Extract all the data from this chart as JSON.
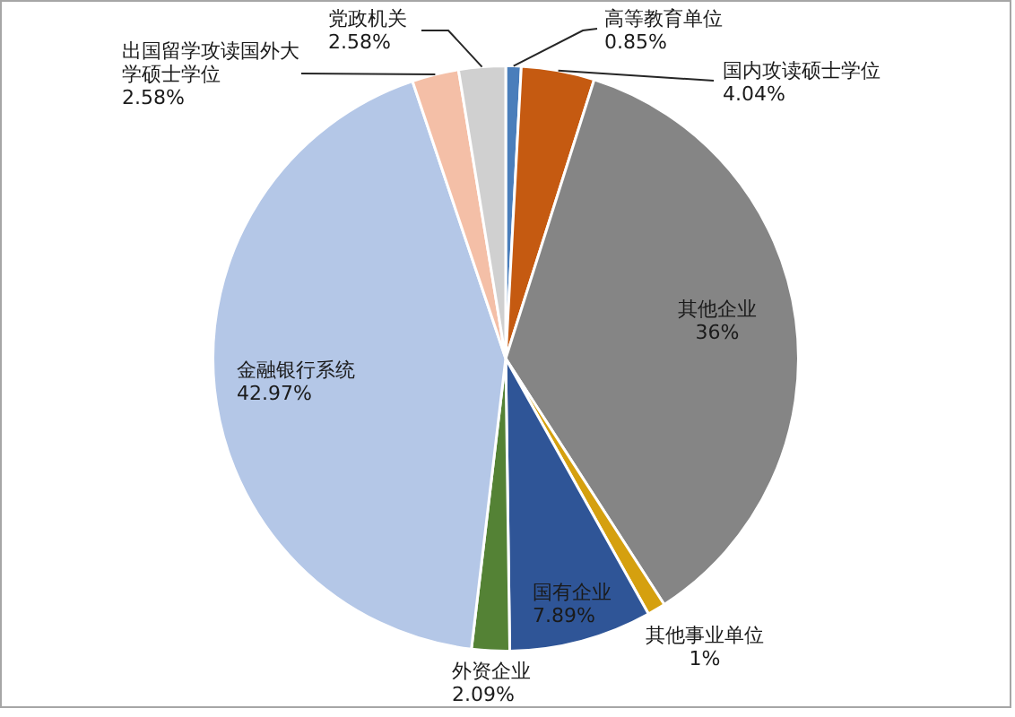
{
  "chart_data": {
    "type": "pie",
    "categories": [
      "高等教育单位",
      "国内攻读硕士学位",
      "其他企业",
      "其他事业单位",
      "国有企业",
      "外资企业",
      "金融银行系统",
      "出国留学攻读国外大学硕士学位",
      "党政机关"
    ],
    "values": [
      0.85,
      4.04,
      36,
      1,
      7.89,
      2.09,
      42.97,
      2.58,
      2.58
    ],
    "colors": [
      "#4a7ebb",
      "#c55a11",
      "#858585",
      "#d5a00f",
      "#2f5597",
      "#548235",
      "#b4c7e7",
      "#f4bfa7",
      "#d0d0d0"
    ],
    "value_labels": [
      "0.85%",
      "4.04%",
      "36%",
      "1%",
      "7.89%",
      "2.09%",
      "42.97%",
      "2.58%",
      "2.58%"
    ],
    "legend": false
  }
}
